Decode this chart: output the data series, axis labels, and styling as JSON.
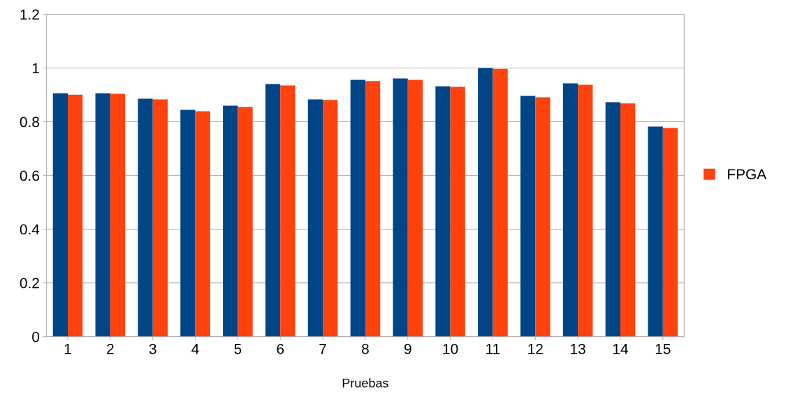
{
  "chart_data": {
    "type": "bar",
    "xlabel": "Pruebas",
    "categories": [
      "1",
      "2",
      "3",
      "4",
      "5",
      "6",
      "7",
      "8",
      "9",
      "10",
      "11",
      "12",
      "13",
      "14",
      "15"
    ],
    "series": [
      {
        "color": "#004586",
        "values": [
          0.906,
          0.906,
          0.886,
          0.844,
          0.86,
          0.94,
          0.883,
          0.956,
          0.961,
          0.932,
          1.0,
          0.896,
          0.943,
          0.873,
          0.782
        ]
      },
      {
        "name": "FPGA",
        "color": "#ff420e",
        "values": [
          0.901,
          0.904,
          0.883,
          0.839,
          0.855,
          0.935,
          0.881,
          0.951,
          0.956,
          0.93,
          0.997,
          0.891,
          0.938,
          0.868,
          0.777
        ]
      }
    ],
    "ylim": [
      0,
      1.2
    ],
    "yticks": [
      0,
      0.2,
      0.4,
      0.6,
      0.8,
      1,
      1.2
    ],
    "grid": "y",
    "legend": "right"
  }
}
